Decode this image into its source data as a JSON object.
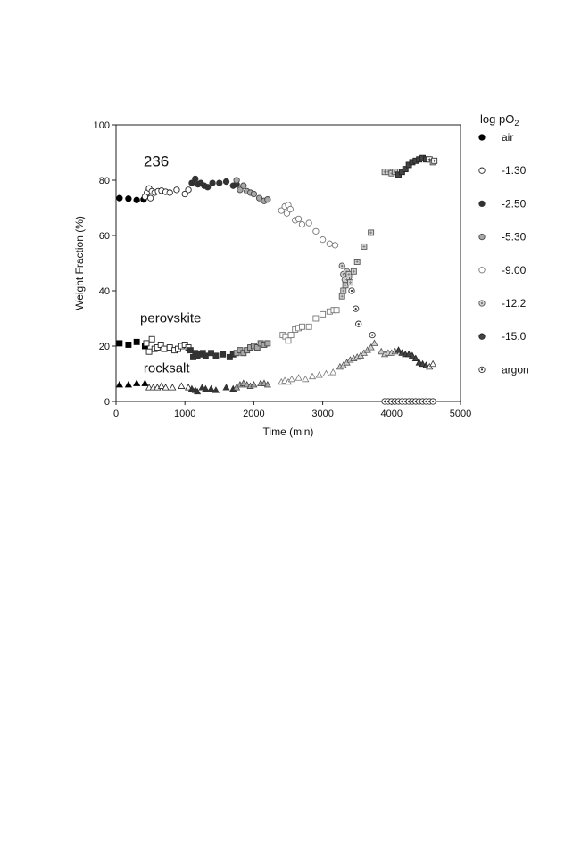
{
  "chart_data": {
    "type": "scatter",
    "xlabel": "Time (min)",
    "ylabel": "Weight Fraction (%)",
    "xlim": [
      0,
      5000
    ],
    "ylim": [
      0,
      100
    ],
    "xticks": [
      0,
      1000,
      2000,
      3000,
      4000,
      5000
    ],
    "yticks": [
      0,
      20,
      40,
      60,
      80,
      100
    ],
    "grid": false,
    "legend_title": "log pO",
    "legend_title_sub": "2",
    "legend_position": "right",
    "legend": [
      {
        "label": "air",
        "marker": "circle",
        "face": "#000000",
        "edge": "#000000"
      },
      {
        "label": "-1.30",
        "marker": "circle",
        "face": "#ffffff",
        "edge": "#222222"
      },
      {
        "label": "-2.50",
        "marker": "circle",
        "face": "#333333",
        "edge": "#333333"
      },
      {
        "label": "-5.30",
        "marker": "circle",
        "face": "#a8a8a8",
        "edge": "#444444"
      },
      {
        "label": "-9.00",
        "marker": "circle",
        "face": "#ffffff",
        "edge": "#777777"
      },
      {
        "label": "-12.2",
        "marker": "circle",
        "face": "#d0d0d0",
        "edge": "#555555",
        "inner": "#777777"
      },
      {
        "label": "-15.0",
        "marker": "circle",
        "face": "#444444",
        "edge": "#222222"
      },
      {
        "label": "argon",
        "marker": "circle",
        "face": "#ffffff",
        "edge": "#333333",
        "inner": "#333333"
      }
    ],
    "series_labels": [
      {
        "text": "236",
        "x": 400,
        "y": 85,
        "size": 17
      },
      {
        "text": "perovskite",
        "x": 350,
        "y": 28.5,
        "size": 15
      },
      {
        "text": "rocksalt",
        "x": 400,
        "y": 10.5,
        "size": 15
      }
    ],
    "series": [
      {
        "phase": "236",
        "condition": "air",
        "marker": "circle",
        "x": [
          50,
          180,
          300,
          400
        ],
        "y": [
          73.5,
          73.3,
          72.8,
          73.0
        ]
      },
      {
        "phase": "236",
        "condition": "-1.30",
        "marker": "circle",
        "x": [
          450,
          480,
          520,
          560,
          610,
          660,
          720,
          780,
          880,
          1000,
          1050,
          420,
          500
        ],
        "y": [
          75.5,
          77.0,
          76.0,
          75.5,
          76.0,
          76.2,
          75.8,
          75.5,
          76.5,
          75.0,
          76.5,
          74.0,
          73.5
        ]
      },
      {
        "phase": "236",
        "condition": "-2.50",
        "marker": "circle",
        "x": [
          1100,
          1150,
          1190,
          1230,
          1280,
          1330,
          1400,
          1500,
          1600,
          1700,
          1750
        ],
        "y": [
          79.0,
          80.5,
          78.5,
          79.0,
          78.0,
          77.5,
          79.0,
          79.0,
          79.5,
          78.0,
          78.5
        ]
      },
      {
        "phase": "236",
        "condition": "-5.30",
        "marker": "circle",
        "x": [
          1750,
          1800,
          1850,
          1900,
          1950,
          2000,
          2080,
          2150,
          2200
        ],
        "y": [
          80.0,
          76.5,
          78.0,
          76.0,
          75.5,
          75.0,
          73.5,
          72.5,
          73.0
        ]
      },
      {
        "phase": "236",
        "condition": "-9.00",
        "marker": "circle",
        "x": [
          2400,
          2450,
          2480,
          2500,
          2530,
          2600,
          2650,
          2700,
          2800,
          2900,
          3000,
          3100,
          3180
        ],
        "y": [
          69.0,
          70.5,
          68.0,
          71.0,
          69.5,
          65.5,
          66.0,
          64.0,
          64.5,
          61.5,
          58.5,
          57.0,
          56.5
        ]
      },
      {
        "phase": "236",
        "condition": "-12.2",
        "marker": "circle",
        "x": [
          3280,
          3300,
          3320,
          3350,
          3380
        ],
        "y": [
          49.0,
          46.0,
          44.0,
          47.0,
          45.0
        ]
      },
      {
        "phase": "236",
        "condition": "argon",
        "marker": "circle",
        "x": [
          3420,
          3480,
          3520,
          3720,
          3900,
          3950,
          4000,
          4050,
          4100,
          4150,
          4200,
          4250,
          4300,
          4350,
          4400,
          4450,
          4500,
          4550,
          4600
        ],
        "y": [
          40.0,
          33.5,
          28.0,
          24.0,
          0,
          0,
          0,
          0,
          0,
          0,
          0,
          0,
          0,
          0,
          0,
          0,
          0,
          0,
          0
        ]
      },
      {
        "phase": "perovskite",
        "condition": "air",
        "marker": "square",
        "x": [
          50,
          180,
          300,
          420
        ],
        "y": [
          21.0,
          20.5,
          21.5,
          20.0
        ]
      },
      {
        "phase": "perovskite",
        "condition": "-1.30",
        "marker": "square",
        "x": [
          440,
          480,
          520,
          560,
          600,
          650,
          700,
          780,
          850,
          900,
          950,
          1000,
          1050
        ],
        "y": [
          21.0,
          18.0,
          22.5,
          19.0,
          19.5,
          20.5,
          19.0,
          19.5,
          18.5,
          19.0,
          20.0,
          20.5,
          19.5
        ]
      },
      {
        "phase": "perovskite",
        "condition": "-2.50",
        "marker": "square",
        "x": [
          1080,
          1120,
          1150,
          1180,
          1220,
          1260,
          1300,
          1380,
          1450,
          1550,
          1650,
          1700
        ],
        "y": [
          18.5,
          16.0,
          17.5,
          16.5,
          17.0,
          17.5,
          16.5,
          17.5,
          16.5,
          17.0,
          16.0,
          17.0
        ]
      },
      {
        "phase": "perovskite",
        "condition": "-5.30",
        "marker": "square",
        "x": [
          1750,
          1800,
          1850,
          1900,
          1950,
          2000,
          2050,
          2100,
          2150,
          2200
        ],
        "y": [
          17.5,
          18.5,
          17.5,
          18.5,
          19.5,
          20.0,
          19.5,
          21.0,
          20.5,
          21.0
        ]
      },
      {
        "phase": "perovskite",
        "condition": "-9.00",
        "marker": "square",
        "x": [
          2420,
          2460,
          2500,
          2540,
          2600,
          2650,
          2700,
          2800,
          2900,
          3000,
          3100,
          3160,
          3200
        ],
        "y": [
          24.0,
          23.5,
          22.0,
          24.0,
          26.0,
          26.5,
          27.0,
          27.0,
          30.0,
          31.5,
          32.5,
          33.0,
          33.0
        ]
      },
      {
        "phase": "perovskite",
        "condition": "-12.2",
        "marker": "square",
        "x": [
          3280,
          3300,
          3330,
          3350,
          3380,
          3400,
          3450,
          3500,
          3600,
          3700,
          3900,
          3950,
          4000,
          4050
        ],
        "y": [
          38.0,
          40.0,
          42.0,
          44.0,
          46.0,
          43.0,
          47.0,
          50.5,
          56.0,
          61.0,
          83.0,
          83.0,
          82.5,
          83.0
        ]
      },
      {
        "phase": "perovskite",
        "condition": "-15.0",
        "marker": "square",
        "x": [
          4100,
          4150,
          4200,
          4250,
          4300,
          4350,
          4400,
          4450,
          4500
        ],
        "y": [
          82.0,
          83.0,
          84.0,
          85.5,
          86.5,
          87.0,
          87.5,
          88.0,
          87.5
        ]
      },
      {
        "phase": "perovskite",
        "condition": "argon",
        "marker": "square",
        "x": [
          4550,
          4600,
          4620
        ],
        "y": [
          87.5,
          86.5,
          87.0
        ]
      },
      {
        "phase": "rocksalt",
        "condition": "air",
        "marker": "triangle",
        "x": [
          50,
          180,
          300,
          420
        ],
        "y": [
          6.0,
          6.0,
          6.5,
          6.5
        ]
      },
      {
        "phase": "rocksalt",
        "condition": "-1.30",
        "marker": "triangle",
        "x": [
          480,
          540,
          600,
          660,
          720,
          820,
          950,
          1050
        ],
        "y": [
          5.0,
          5.0,
          5.0,
          5.5,
          5.0,
          5.0,
          5.5,
          5.0
        ]
      },
      {
        "phase": "rocksalt",
        "condition": "-2.50",
        "marker": "triangle",
        "x": [
          1100,
          1150,
          1180,
          1250,
          1300,
          1380,
          1450,
          1600,
          1700
        ],
        "y": [
          4.5,
          4.0,
          3.5,
          5.0,
          4.5,
          4.5,
          4.0,
          5.0,
          4.5
        ]
      },
      {
        "phase": "rocksalt",
        "condition": "-5.30",
        "marker": "triangle",
        "x": [
          1750,
          1800,
          1850,
          1900,
          1950,
          2000,
          2100,
          2150,
          2200
        ],
        "y": [
          5.0,
          6.0,
          6.5,
          6.0,
          5.5,
          6.0,
          6.5,
          6.5,
          6.0
        ]
      },
      {
        "phase": "rocksalt",
        "condition": "-9.00",
        "marker": "triangle",
        "x": [
          2400,
          2450,
          2500,
          2550,
          2650,
          2750,
          2850,
          2950,
          3050,
          3150
        ],
        "y": [
          7.0,
          7.5,
          7.0,
          8.0,
          8.5,
          8.0,
          9.0,
          9.5,
          10.0,
          10.5
        ]
      },
      {
        "phase": "rocksalt",
        "condition": "-12.2",
        "marker": "triangle",
        "x": [
          3250,
          3300,
          3350,
          3400,
          3450,
          3500,
          3550,
          3600,
          3650,
          3700,
          3750,
          3850,
          3900,
          3950,
          4000,
          4050
        ],
        "y": [
          12.5,
          13.0,
          14.0,
          15.0,
          15.5,
          16.0,
          16.5,
          17.5,
          18.5,
          19.5,
          21.0,
          18.0,
          17.0,
          17.5,
          17.5,
          18.0
        ]
      },
      {
        "phase": "rocksalt",
        "condition": "-15.0",
        "marker": "triangle",
        "x": [
          4100,
          4150,
          4200,
          4250,
          4300,
          4350,
          4400,
          4450,
          4500
        ],
        "y": [
          18.5,
          17.5,
          17.0,
          17.0,
          16.5,
          15.5,
          14.0,
          13.5,
          13.0
        ]
      },
      {
        "phase": "rocksalt",
        "condition": "argon",
        "marker": "triangle",
        "x": [
          4550,
          4600
        ],
        "y": [
          12.5,
          13.5
        ]
      }
    ]
  }
}
